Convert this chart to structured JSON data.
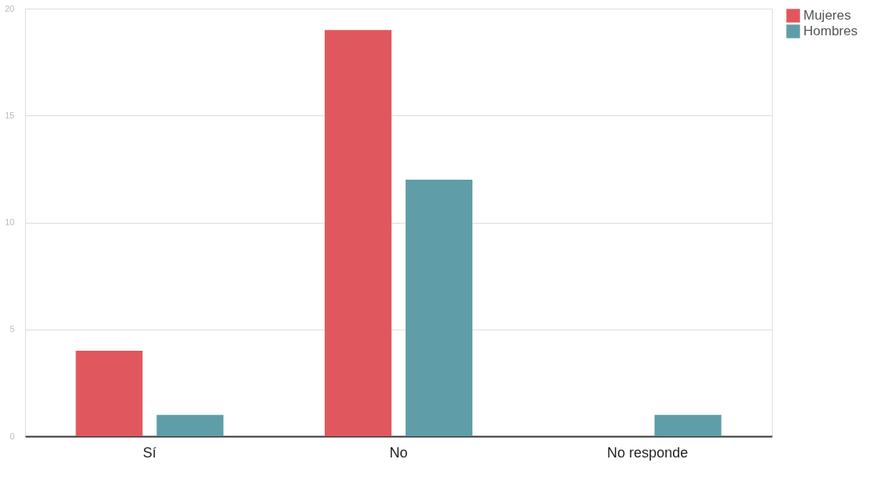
{
  "chart_data": {
    "type": "bar",
    "categories": [
      "Sí",
      "No",
      "No responde"
    ],
    "series": [
      {
        "name": "Mujeres",
        "color": "#e0575e",
        "values": [
          4,
          19,
          0
        ]
      },
      {
        "name": "Hombres",
        "color": "#5f9ea8",
        "values": [
          1,
          12,
          1
        ]
      }
    ],
    "ylim": [
      0,
      20
    ],
    "yticks": [
      0,
      5,
      10,
      15,
      20
    ],
    "grid": "y",
    "legend": "top right"
  }
}
